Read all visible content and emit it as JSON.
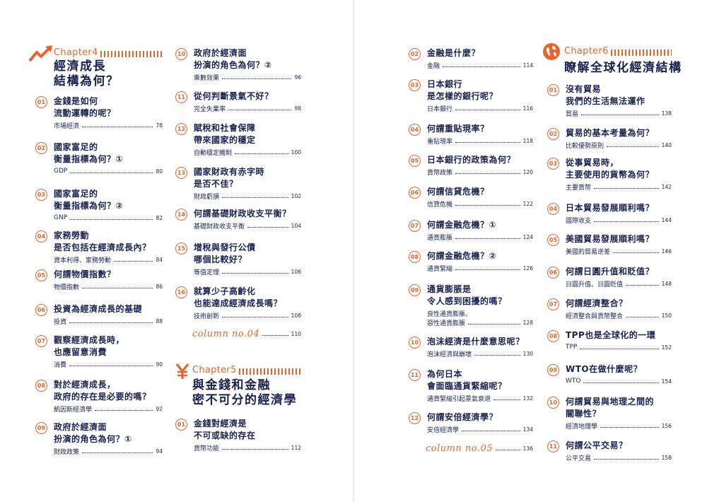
{
  "chapters": {
    "ch4": {
      "label": "Chapter4",
      "title": "經濟成長\n結構為何？"
    },
    "ch5": {
      "label": "Chapter5",
      "title": "與金錢和金融\n密不可分的經濟學"
    },
    "ch6": {
      "label": "Chapter6",
      "title": "瞭解全球化經濟結構"
    }
  },
  "col1": [
    {
      "num": "01",
      "title": "金錢是如何\n流動運轉的呢？",
      "sub": "市場經濟",
      "page": "78"
    },
    {
      "num": "02",
      "title": "國家富足的\n衡量指標為何？①",
      "sub": "GDP",
      "page": "80"
    },
    {
      "num": "03",
      "title": "國家富足的\n衡量指標為何？②",
      "sub": "GNP",
      "page": "82"
    },
    {
      "num": "04",
      "title": "家務勞動\n是否包括在經濟成長內？",
      "sub": "資本利得、家務勞動",
      "page": "84"
    },
    {
      "num": "05",
      "title": "何謂物價指數？",
      "sub": "物價指數",
      "page": "86"
    },
    {
      "num": "06",
      "title": "投資為經濟成長的基礎",
      "sub": "投資",
      "page": "88"
    },
    {
      "num": "07",
      "title": "觀察經濟成長時，\n也應留意消費",
      "sub": "消費",
      "page": "90"
    },
    {
      "num": "08",
      "title": "對於經濟成長，\n政府的存在是必要的嗎？",
      "sub": "凱因斯經濟學",
      "page": "92"
    },
    {
      "num": "09",
      "title": "政府於經濟面\n扮演的角色為何？①",
      "sub": "財政政策",
      "page": "94"
    }
  ],
  "col2": [
    {
      "num": "10",
      "title": "政府於經濟面\n扮演的角色為何？②",
      "sub": "乘數效果",
      "page": "96"
    },
    {
      "num": "11",
      "title": "從何判斷景氣不好？",
      "sub": "完全失業率",
      "page": "98"
    },
    {
      "num": "12",
      "title": "賦稅和社會保障\n帶來國家的穩定",
      "sub": "自動穩定機制",
      "page": "100"
    },
    {
      "num": "13",
      "title": "國家財政有赤字時\n是否不佳？",
      "sub": "財政虧損",
      "page": "102"
    },
    {
      "num": "14",
      "title": "何謂基礎財政收支平衡？",
      "sub": "基礎財政收支平衡",
      "page": "104"
    },
    {
      "num": "15",
      "title": "增稅與發行公債\n哪個比較好？",
      "sub": "等值定理",
      "page": "106"
    },
    {
      "num": "16",
      "title": "就算少子高齡化\n也能達成經濟成長嗎？",
      "sub": "技術創新",
      "page": "108"
    }
  ],
  "column4": {
    "label": "column no.04",
    "page": "110"
  },
  "col2b": [
    {
      "num": "01",
      "title": "金錢對經濟是\n不可或缺的存在",
      "sub": "貨幣功能",
      "page": "112"
    }
  ],
  "col3": [
    {
      "num": "02",
      "title": "金融是什麼？",
      "sub": "金融",
      "page": "114"
    },
    {
      "num": "03",
      "title": "日本銀行\n是怎樣的銀行呢？",
      "sub": "日本銀行",
      "page": "116"
    },
    {
      "num": "04",
      "title": "何謂重貼現率？",
      "sub": "重貼現率",
      "page": "118"
    },
    {
      "num": "05",
      "title": "日本銀行的政策為何？",
      "sub": "貨幣政策",
      "page": "120"
    },
    {
      "num": "06",
      "title": "何謂信貸危機？",
      "sub": "信貸危機",
      "page": "122"
    },
    {
      "num": "07",
      "title": "何謂金融危機？①",
      "sub": "通貨膨脹",
      "page": "124"
    },
    {
      "num": "08",
      "title": "何謂金融危機？②",
      "sub": "通貨緊縮",
      "page": "126"
    },
    {
      "num": "09",
      "title": "通貨膨脹是\n令人感到困擾的嗎？",
      "sub": "良性通貨膨脹、",
      "sub2": "惡性通貨膨脹",
      "page": "128"
    },
    {
      "num": "10",
      "title": "泡沫經濟是什麼意思呢？",
      "sub": "泡沫經濟與崩壞",
      "page": "130"
    },
    {
      "num": "11",
      "title": "為何日本\n會面臨通貨緊縮呢？",
      "sub": "通貨緊縮引起景氣衰退",
      "page": "132"
    },
    {
      "num": "12",
      "title": "何謂安倍經濟學？",
      "sub": "安倍經濟學",
      "page": "134"
    }
  ],
  "column5": {
    "label": "column no.05",
    "page": "136"
  },
  "col4": [
    {
      "num": "01",
      "title": "沒有貿易\n我們的生活無法運作",
      "sub": "貿易",
      "page": "138"
    },
    {
      "num": "02",
      "title": "貿易的基本考量為何？",
      "sub": "比較優勢原則",
      "page": "140"
    },
    {
      "num": "03",
      "title": "從事貿易時，\n主要使用的貨幣為何？",
      "sub": "主要貨幣",
      "page": "142"
    },
    {
      "num": "04",
      "title": "日本貿易發展順利嗎？",
      "sub": "國際收支",
      "page": "144"
    },
    {
      "num": "05",
      "title": "美國貿易發展順利嗎？",
      "sub": "美國的貿易逆差",
      "page": "146"
    },
    {
      "num": "06",
      "title": "何謂日圓升值和貶值？",
      "sub": "日圓升值、日圓貶值",
      "page": "148"
    },
    {
      "num": "07",
      "title": "何謂經濟整合？",
      "sub": "經濟整合與貨幣整合",
      "page": "150"
    },
    {
      "num": "08",
      "title": "TPP也是全球化的一環",
      "sub": "TPP",
      "page": "152"
    },
    {
      "num": "09",
      "title": "WTO在做什麼呢？",
      "sub": "WTO",
      "page": "154"
    },
    {
      "num": "10",
      "title": "何謂貿易與地理之間的\n關聯性？",
      "sub": "經濟地理學",
      "page": "156"
    },
    {
      "num": "11",
      "title": "何謂公平交易？",
      "sub": "公平交易",
      "page": "158"
    }
  ],
  "colors": {
    "accent": "#e8642a",
    "navy": "#1a2250"
  },
  "icons": {
    "ch4": "growth-arrow-icon",
    "ch5": "yen-icon",
    "ch6": "globe-icon"
  }
}
